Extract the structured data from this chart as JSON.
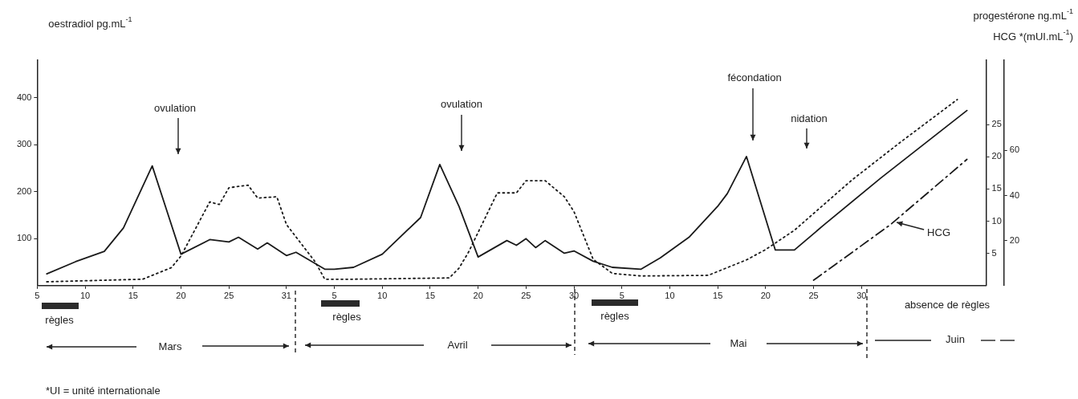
{
  "chart_data": {
    "type": "line",
    "ylabel": "oestradiol pg.mL$^{-1}$",
    "y2label": "progestérone ng.mL$^{-1}$",
    "y3label": "HCG *(mUI.mL$^{-1}$)",
    "xlim": [
      "--03-05",
      "--06-12"
    ],
    "xticks": [
      {
        "value": "--03-05",
        "label": "5"
      },
      {
        "value": "--03-10",
        "label": "10"
      },
      {
        "value": "--03-15",
        "label": "15"
      },
      {
        "value": "--03-20",
        "label": "20"
      },
      {
        "value": "--03-25",
        "label": "25"
      },
      {
        "value": "--03-31",
        "label": "31"
      },
      {
        "value": "--04-05",
        "label": "5"
      },
      {
        "value": "--04-10",
        "label": "10"
      },
      {
        "value": "--04-15",
        "label": "15"
      },
      {
        "value": "--04-20",
        "label": "20"
      },
      {
        "value": "--04-25",
        "label": "25"
      },
      {
        "value": "--04-30",
        "label": "30"
      },
      {
        "value": "--05-05",
        "label": "5"
      },
      {
        "value": "--05-10",
        "label": "10"
      },
      {
        "value": "--05-15",
        "label": "15"
      },
      {
        "value": "--05-20",
        "label": "20"
      },
      {
        "value": "--05-25",
        "label": "25"
      },
      {
        "value": "--05-30",
        "label": "30"
      }
    ],
    "ylim": [
      0,
      480
    ],
    "yticks": [
      100,
      200,
      300,
      400
    ],
    "y2lim": [
      0,
      35
    ],
    "y2ticks": [
      5,
      10,
      15,
      20,
      25
    ],
    "y3lim": [
      0,
      100
    ],
    "y3ticks": [
      20,
      40,
      60
    ],
    "series": [
      {
        "color": "#1a1a1a",
        "line_style": "solid",
        "axis": "y",
        "x": [
          "--03-06",
          "--03-09",
          "--03-12",
          "--03-14",
          "--03-17",
          "--03-20",
          "--03-23",
          "--03-25",
          "--03-26",
          "--03-28",
          "--03-29",
          "--03-31",
          "--04-01",
          "--04-04",
          "--04-05",
          "--04-07",
          "--04-10",
          "--04-14",
          "--04-16",
          "--04-18",
          "--04-20",
          "--04-23",
          "--04-24",
          "--04-25",
          "--04-26",
          "--04-27",
          "--04-29",
          "--04-30",
          "--05-02",
          "--05-04",
          "--05-07",
          "--05-09",
          "--05-12",
          "--05-15",
          "--05-16",
          "--05-18",
          "--05-21",
          "--05-23",
          "--05-26",
          "--06-01",
          "--06-10"
        ],
        "values": [
          25,
          51,
          73,
          123,
          255,
          67,
          98,
          93,
          103,
          78,
          91,
          64,
          71,
          35,
          35,
          39,
          67,
          145,
          258,
          169,
          61,
          96,
          86,
          100,
          81,
          96,
          69,
          74,
          52,
          39,
          35,
          59,
          103,
          169,
          196,
          275,
          76,
          76,
          128,
          229,
          373
        ]
      },
      {
        "color": "#1a1a1a",
        "line_style": "dotted",
        "axis": "y2",
        "x": [
          "--03-06",
          "--03-16",
          "--03-19",
          "--03-20",
          "--03-23",
          "--03-24",
          "--03-25",
          "--03-27",
          "--03-28",
          "--03-30",
          "--03-31",
          "--04-03",
          "--04-04",
          "--04-07",
          "--04-17",
          "--04-18",
          "--04-19",
          "--04-22",
          "--04-24",
          "--04-25",
          "--04-27",
          "--04-29",
          "--04-30",
          "--05-02",
          "--05-04",
          "--05-07",
          "--05-14",
          "--05-18",
          "--05-20",
          "--05-23",
          "--05-29",
          "--06-03",
          "--06-09"
        ],
        "values": [
          0.6,
          1.0,
          2.8,
          4.6,
          13.0,
          12.6,
          15.2,
          15.6,
          13.6,
          13.8,
          9.5,
          3.7,
          1.0,
          1.0,
          1.2,
          2.7,
          5.2,
          14.4,
          14.4,
          16.3,
          16.3,
          13.8,
          11.5,
          4.1,
          1.9,
          1.5,
          1.6,
          4.0,
          5.6,
          8.6,
          16.4,
          22.2,
          28.9
        ]
      },
      {
        "name": "HCG",
        "color": "#1a1a1a",
        "line_style": "dashed",
        "axis": "y3",
        "x": [
          "--05-25",
          "--06-02",
          "--06-10"
        ],
        "values": [
          2.4,
          27,
          56
        ]
      }
    ],
    "annotations": [
      "ovulation",
      "ovulation",
      "fécondation",
      "nidation",
      "absence de règles",
      "règles",
      "règles",
      "règles",
      "Mars",
      "Avril",
      "Mai",
      "Juin",
      "*UI = unité internationale"
    ]
  }
}
